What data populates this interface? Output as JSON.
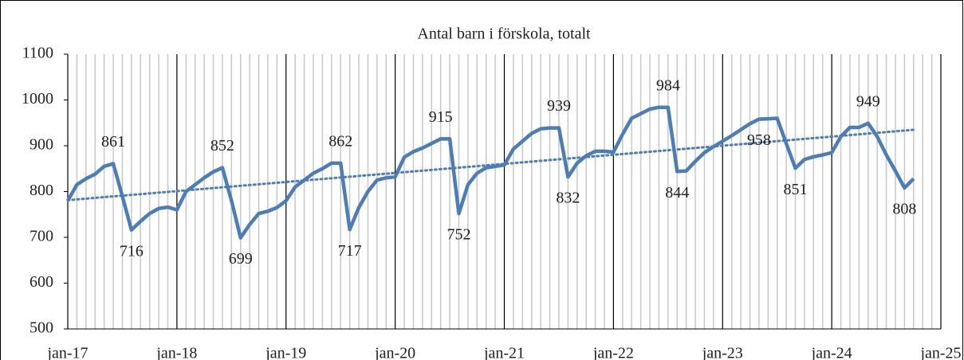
{
  "chart_data": {
    "type": "line",
    "title": "Antal barn i förskola, totalt",
    "categories": [
      "jan-17",
      null,
      null,
      null,
      null,
      null,
      null,
      null,
      null,
      null,
      null,
      null,
      "jan-18",
      null,
      null,
      null,
      null,
      null,
      null,
      null,
      null,
      null,
      null,
      null,
      "jan-19",
      null,
      null,
      null,
      null,
      null,
      null,
      null,
      null,
      null,
      null,
      null,
      "jan-20",
      null,
      null,
      null,
      null,
      null,
      null,
      null,
      null,
      null,
      null,
      null,
      "jan-21",
      null,
      null,
      null,
      null,
      null,
      null,
      null,
      null,
      null,
      null,
      null,
      "jan-22",
      null,
      null,
      null,
      null,
      null,
      null,
      null,
      null,
      null,
      null,
      null,
      "jan-23",
      null,
      null,
      null,
      null,
      null,
      null,
      null,
      null,
      null,
      null,
      null,
      "jan-24",
      null,
      null,
      null,
      null,
      null,
      null,
      null,
      null,
      null,
      null,
      null,
      "jan-25"
    ],
    "series": [
      {
        "name": "Antal barn",
        "color": "#4a7ebb",
        "values": [
          780,
          815,
          828,
          838,
          855,
          861,
          790,
          716,
          735,
          752,
          763,
          766,
          760,
          800,
          815,
          830,
          843,
          852,
          780,
          699,
          728,
          752,
          757,
          765,
          780,
          810,
          825,
          840,
          850,
          862,
          862,
          717,
          765,
          800,
          825,
          830,
          832,
          875,
          887,
          895,
          905,
          915,
          915,
          752,
          815,
          840,
          852,
          855,
          858,
          893,
          910,
          927,
          937,
          939,
          939,
          832,
          862,
          878,
          888,
          888,
          886,
          925,
          960,
          970,
          980,
          984,
          984,
          844,
          845,
          866,
          885,
          898,
          910,
          922,
          935,
          948,
          958,
          959,
          960,
          905,
          851,
          870,
          876,
          880,
          885,
          920,
          940,
          940,
          949,
          920,
          880,
          845,
          808,
          828,
          null,
          null,
          null
        ],
        "value_labels": [
          null,
          null,
          null,
          null,
          null,
          "861",
          null,
          "716",
          null,
          null,
          null,
          null,
          null,
          null,
          null,
          null,
          null,
          "852",
          null,
          "699",
          null,
          null,
          null,
          null,
          null,
          null,
          null,
          null,
          null,
          null,
          "862",
          "717",
          null,
          null,
          null,
          null,
          null,
          null,
          null,
          null,
          null,
          "915",
          null,
          "752",
          null,
          null,
          null,
          null,
          null,
          null,
          null,
          null,
          null,
          null,
          "939",
          "832",
          null,
          null,
          null,
          null,
          null,
          null,
          null,
          null,
          null,
          null,
          "984",
          "844",
          null,
          null,
          null,
          null,
          null,
          null,
          null,
          null,
          "958",
          null,
          null,
          null,
          "851",
          null,
          null,
          null,
          null,
          null,
          null,
          null,
          "949",
          null,
          null,
          null,
          "808",
          null,
          null,
          null,
          null
        ]
      }
    ],
    "trendline": true,
    "ylim": [
      500,
      1100
    ],
    "yticks": [
      500,
      600,
      700,
      800,
      900,
      1000,
      1100
    ]
  }
}
